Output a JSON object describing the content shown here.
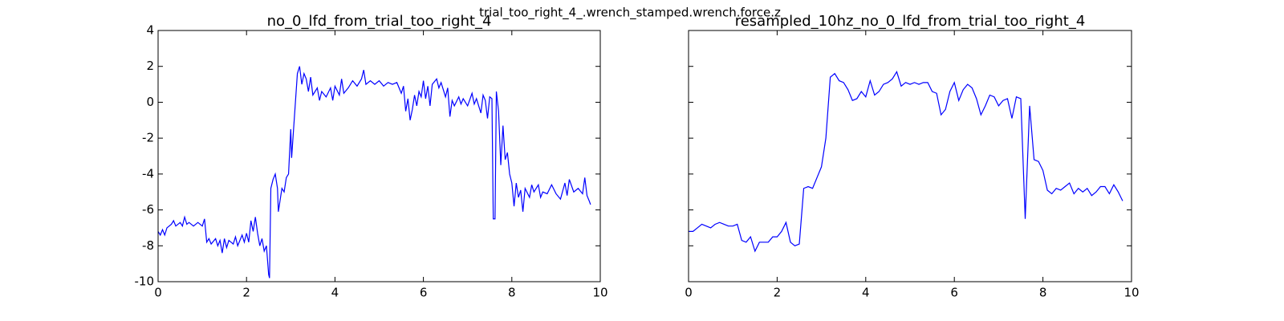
{
  "title": "trial_too_right_4_.wrench_stamped.wrench.force.z",
  "chart_data": [
    {
      "type": "line",
      "title": "no_0_lfd_from_trial_too_right_4",
      "x": [
        0,
        0.05,
        0.1,
        0.15,
        0.2,
        0.3,
        0.35,
        0.4,
        0.5,
        0.55,
        0.6,
        0.65,
        0.7,
        0.8,
        0.9,
        1.0,
        1.05,
        1.1,
        1.15,
        1.2,
        1.3,
        1.35,
        1.4,
        1.45,
        1.5,
        1.55,
        1.6,
        1.7,
        1.75,
        1.8,
        1.9,
        1.95,
        2.0,
        2.05,
        2.1,
        2.15,
        2.2,
        2.25,
        2.3,
        2.35,
        2.4,
        2.45,
        2.5,
        2.52,
        2.55,
        2.6,
        2.65,
        2.7,
        2.72,
        2.8,
        2.85,
        2.9,
        2.95,
        3.0,
        3.02,
        3.05,
        3.1,
        3.15,
        3.2,
        3.25,
        3.3,
        3.35,
        3.4,
        3.45,
        3.5,
        3.6,
        3.65,
        3.7,
        3.8,
        3.9,
        3.95,
        4.0,
        4.1,
        4.15,
        4.2,
        4.3,
        4.4,
        4.5,
        4.6,
        4.65,
        4.7,
        4.8,
        4.9,
        5.0,
        5.1,
        5.2,
        5.3,
        5.4,
        5.5,
        5.55,
        5.6,
        5.65,
        5.7,
        5.75,
        5.8,
        5.85,
        5.9,
        5.95,
        6.0,
        6.05,
        6.1,
        6.15,
        6.2,
        6.3,
        6.35,
        6.4,
        6.5,
        6.55,
        6.6,
        6.65,
        6.7,
        6.8,
        6.85,
        6.9,
        7.0,
        7.1,
        7.15,
        7.2,
        7.3,
        7.35,
        7.4,
        7.45,
        7.5,
        7.55,
        7.58,
        7.62,
        7.65,
        7.7,
        7.75,
        7.8,
        7.85,
        7.9,
        7.95,
        8.0,
        8.05,
        8.1,
        8.15,
        8.2,
        8.25,
        8.3,
        8.4,
        8.45,
        8.5,
        8.6,
        8.65,
        8.7,
        8.8,
        8.9,
        9.0,
        9.1,
        9.2,
        9.25,
        9.3,
        9.4,
        9.5,
        9.6,
        9.65,
        9.7,
        9.75,
        9.78
      ],
      "series": [
        {
          "color": "#0000ff",
          "values": [
            -7.2,
            -7.4,
            -7.1,
            -7.4,
            -7.0,
            -6.8,
            -6.6,
            -6.9,
            -6.7,
            -6.9,
            -6.4,
            -6.8,
            -6.7,
            -6.9,
            -6.7,
            -6.9,
            -6.5,
            -7.8,
            -7.6,
            -7.9,
            -7.6,
            -8.0,
            -7.7,
            -8.4,
            -7.6,
            -8.1,
            -7.7,
            -7.9,
            -7.5,
            -8.0,
            -7.4,
            -7.8,
            -7.3,
            -7.8,
            -6.6,
            -7.2,
            -6.4,
            -7.3,
            -8.0,
            -7.6,
            -8.3,
            -8.0,
            -9.6,
            -9.8,
            -4.8,
            -4.3,
            -4.0,
            -4.8,
            -6.1,
            -4.8,
            -5.0,
            -4.2,
            -4.0,
            -1.5,
            -3.1,
            -2.0,
            -0.2,
            1.6,
            2.0,
            1.0,
            1.6,
            1.3,
            0.6,
            1.4,
            0.4,
            0.8,
            0.1,
            0.6,
            0.3,
            0.8,
            0.1,
            0.9,
            0.4,
            1.3,
            0.5,
            0.8,
            1.2,
            0.9,
            1.3,
            1.8,
            1.0,
            1.2,
            1.0,
            1.2,
            0.9,
            1.1,
            1.0,
            1.1,
            0.5,
            0.9,
            -0.5,
            0.2,
            -1.0,
            -0.4,
            0.4,
            -0.2,
            0.6,
            0.3,
            1.2,
            0.2,
            0.9,
            -0.2,
            1.0,
            1.3,
            0.8,
            1.1,
            0.3,
            0.8,
            -0.8,
            0.1,
            -0.2,
            0.3,
            -0.1,
            0.2,
            -0.2,
            0.5,
            -0.1,
            0.2,
            -0.6,
            0.4,
            0.1,
            -0.9,
            0.3,
            0.2,
            -6.5,
            -6.5,
            0.6,
            -0.5,
            -3.5,
            -1.3,
            -3.2,
            -2.8,
            -4.0,
            -4.5,
            -5.8,
            -4.5,
            -5.3,
            -4.9,
            -6.1,
            -4.8,
            -5.3,
            -4.6,
            -5.0,
            -4.6,
            -5.3,
            -5.0,
            -5.1,
            -4.6,
            -5.1,
            -5.4,
            -4.5,
            -5.2,
            -4.3,
            -5.0,
            -4.8,
            -5.1,
            -4.2,
            -5.2,
            -5.5,
            -5.7
          ]
        }
      ],
      "xlim": [
        0,
        10
      ],
      "ylim": [
        -10,
        4
      ],
      "xticks": [
        0,
        2,
        4,
        6,
        8,
        10
      ],
      "yticks": [
        -10,
        -8,
        -6,
        -4,
        -2,
        0,
        2,
        4
      ],
      "show_ytick_labels": true
    },
    {
      "type": "line",
      "title": "resampled_10hz_no_0_lfd_from_trial_too_right_4",
      "x": [
        0,
        0.1,
        0.2,
        0.3,
        0.4,
        0.5,
        0.6,
        0.7,
        0.8,
        0.9,
        1.0,
        1.1,
        1.2,
        1.3,
        1.4,
        1.5,
        1.6,
        1.7,
        1.8,
        1.9,
        2.0,
        2.1,
        2.2,
        2.3,
        2.4,
        2.5,
        2.6,
        2.7,
        2.8,
        2.9,
        3.0,
        3.1,
        3.2,
        3.3,
        3.4,
        3.5,
        3.6,
        3.7,
        3.8,
        3.9,
        4.0,
        4.1,
        4.2,
        4.3,
        4.4,
        4.5,
        4.6,
        4.7,
        4.8,
        4.9,
        5.0,
        5.1,
        5.2,
        5.3,
        5.4,
        5.5,
        5.6,
        5.7,
        5.8,
        5.9,
        6.0,
        6.1,
        6.2,
        6.3,
        6.4,
        6.5,
        6.6,
        6.7,
        6.8,
        6.9,
        7.0,
        7.1,
        7.2,
        7.3,
        7.4,
        7.5,
        7.6,
        7.7,
        7.8,
        7.9,
        8.0,
        8.1,
        8.2,
        8.3,
        8.4,
        8.5,
        8.6,
        8.7,
        8.8,
        8.9,
        9.0,
        9.1,
        9.2,
        9.3,
        9.4,
        9.5,
        9.6,
        9.7,
        9.8
      ],
      "series": [
        {
          "color": "#0000ff",
          "values": [
            -7.2,
            -7.2,
            -7.0,
            -6.8,
            -6.9,
            -7.0,
            -6.8,
            -6.7,
            -6.8,
            -6.9,
            -6.9,
            -6.8,
            -7.7,
            -7.8,
            -7.5,
            -8.3,
            -7.8,
            -7.8,
            -7.8,
            -7.5,
            -7.5,
            -7.2,
            -6.7,
            -7.8,
            -8.0,
            -7.9,
            -4.8,
            -4.7,
            -4.8,
            -4.2,
            -3.6,
            -2.0,
            1.4,
            1.6,
            1.2,
            1.1,
            0.7,
            0.1,
            0.2,
            0.6,
            0.3,
            1.2,
            0.4,
            0.6,
            1.0,
            1.1,
            1.3,
            1.7,
            0.9,
            1.1,
            1.0,
            1.1,
            1.0,
            1.1,
            1.1,
            0.6,
            0.5,
            -0.7,
            -0.4,
            0.6,
            1.1,
            0.1,
            0.7,
            1.0,
            0.8,
            0.2,
            -0.7,
            -0.2,
            0.4,
            0.3,
            -0.2,
            0.1,
            0.2,
            -0.9,
            0.3,
            0.2,
            -6.5,
            -0.2,
            -3.2,
            -3.3,
            -3.8,
            -4.9,
            -5.1,
            -4.8,
            -4.9,
            -4.7,
            -4.5,
            -5.1,
            -4.8,
            -5.0,
            -4.8,
            -5.2,
            -5.0,
            -4.7,
            -4.7,
            -5.1,
            -4.6,
            -5.0,
            -5.5
          ]
        }
      ],
      "xlim": [
        0,
        10
      ],
      "ylim": [
        -10,
        4
      ],
      "xticks": [
        0,
        2,
        4,
        6,
        8,
        10
      ],
      "yticks": [
        -10,
        -8,
        -6,
        -4,
        -2,
        0,
        2,
        4
      ],
      "show_ytick_labels": false
    }
  ]
}
